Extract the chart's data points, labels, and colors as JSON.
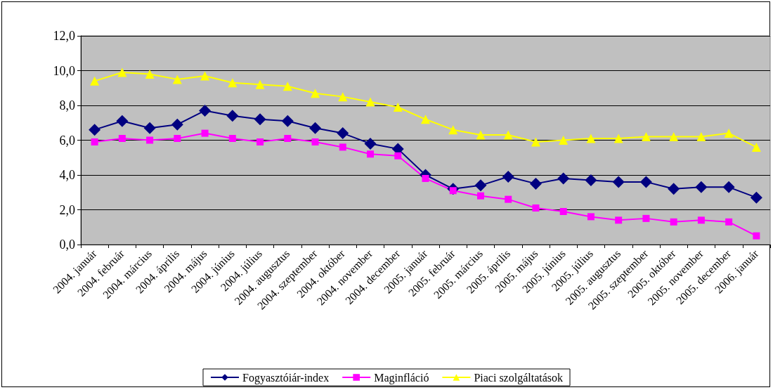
{
  "chart_data": {
    "type": "line",
    "categories": [
      "2004. január",
      "2004. február",
      "2004. március",
      "2004. április",
      "2004. május",
      "2004. június",
      "2004. július",
      "2004. augusztus",
      "2004. szeptember",
      "2004. október",
      "2004. november",
      "2004. december",
      "2005. január",
      "2005. február",
      "2005. március",
      "2005. április",
      "2005. május",
      "2005. június",
      "2005. július",
      "2005. augusztus",
      "2005. szeptember",
      "2005. október",
      "2005. november",
      "2005. december",
      "2006. január"
    ],
    "series": [
      {
        "name": "Fogyasztóiár-index",
        "color": "#000080",
        "marker": "diamond",
        "values": [
          6.6,
          7.1,
          6.7,
          6.9,
          7.7,
          7.4,
          7.2,
          7.1,
          6.7,
          6.4,
          5.8,
          5.5,
          4.0,
          3.2,
          3.4,
          3.9,
          3.5,
          3.8,
          3.7,
          3.6,
          3.6,
          3.2,
          3.3,
          3.3,
          2.7
        ]
      },
      {
        "name": "Maginfláció",
        "color": "#ff00ff",
        "marker": "square",
        "values": [
          5.9,
          6.1,
          6.0,
          6.1,
          6.4,
          6.1,
          5.9,
          6.1,
          5.9,
          5.6,
          5.2,
          5.1,
          3.8,
          3.1,
          2.8,
          2.6,
          2.1,
          1.9,
          1.6,
          1.4,
          1.5,
          1.3,
          1.4,
          1.3,
          0.5
        ]
      },
      {
        "name": "Piaci szolgáltatások",
        "color": "#ffff00",
        "marker": "triangle",
        "values": [
          9.4,
          9.9,
          9.8,
          9.5,
          9.7,
          9.3,
          9.2,
          9.1,
          8.7,
          8.5,
          8.2,
          7.9,
          7.2,
          6.6,
          6.3,
          6.3,
          5.9,
          6.0,
          6.1,
          6.1,
          6.2,
          6.2,
          6.2,
          6.4,
          5.6
        ]
      }
    ],
    "ylim": [
      0,
      12
    ],
    "yticks": [
      {
        "value": 0,
        "label": "0,0"
      },
      {
        "value": 2,
        "label": "2,0"
      },
      {
        "value": 4,
        "label": "4,0"
      },
      {
        "value": 6,
        "label": "6,0"
      },
      {
        "value": 8,
        "label": "8,0"
      },
      {
        "value": 10,
        "label": "10,0"
      },
      {
        "value": 12,
        "label": "12,0"
      }
    ],
    "grid": "y",
    "legend": "bottom",
    "line_style": "solid"
  }
}
